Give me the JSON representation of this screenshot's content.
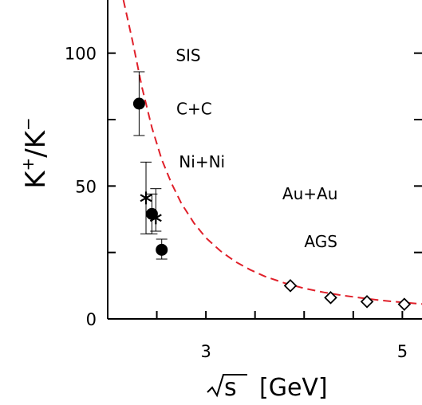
{
  "chart_data": {
    "type": "scatter",
    "xlabel": {
      "prefix": "√s",
      "unit": "[GeV]"
    },
    "ylabel": {
      "base": "K",
      "sup1": "+",
      "sep": "/",
      "base2": "K",
      "sup2": "−"
    },
    "xlim": [
      2.0,
      5.2
    ],
    "ylim": [
      0,
      120
    ],
    "x_ticks": [
      {
        "value": 2.5,
        "label": ""
      },
      {
        "value": 3.0,
        "label": "3"
      },
      {
        "value": 3.5,
        "label": ""
      },
      {
        "value": 4.0,
        "label": ""
      },
      {
        "value": 4.5,
        "label": ""
      },
      {
        "value": 5.0,
        "label": "5"
      }
    ],
    "y_ticks": [
      {
        "value": 0,
        "label": "0"
      },
      {
        "value": 25,
        "label": ""
      },
      {
        "value": 50,
        "label": "50"
      },
      {
        "value": 75,
        "label": ""
      },
      {
        "value": 100,
        "label": "100"
      }
    ],
    "annotations": [
      {
        "text": "SIS",
        "x": 2.82,
        "y": 97
      },
      {
        "text": "C+C",
        "x": 2.88,
        "y": 77
      },
      {
        "text": "Ni+Ni",
        "x": 2.96,
        "y": 57
      },
      {
        "text": "Au+Au",
        "x": 4.06,
        "y": 45
      },
      {
        "text": "AGS",
        "x": 4.17,
        "y": 27
      }
    ],
    "series": [
      {
        "marker": "filled-circle",
        "points": [
          {
            "x": 2.32,
            "y": 81,
            "yerr": [
              69,
              93
            ]
          },
          {
            "x": 2.45,
            "y": 39.5,
            "yerr": [
              32,
              47
            ]
          },
          {
            "x": 2.55,
            "y": 26,
            "yerr": [
              22.5,
              30
            ]
          }
        ]
      },
      {
        "marker": "star",
        "points": [
          {
            "x": 2.39,
            "y": 45.5,
            "yerr": [
              32,
              59
            ]
          },
          {
            "x": 2.49,
            "y": 38,
            "yerr": [
              33,
              49
            ]
          }
        ]
      },
      {
        "marker": "open-diamond",
        "points": [
          {
            "x": 3.86,
            "y": 12.5
          },
          {
            "x": 4.27,
            "y": 8
          },
          {
            "x": 4.64,
            "y": 6.5
          },
          {
            "x": 5.02,
            "y": 5.5
          }
        ]
      }
    ],
    "fit_curve": {
      "style": "dashed",
      "color": "#e0202a",
      "points": [
        {
          "x": 2.16,
          "y": 120
        },
        {
          "x": 2.25,
          "y": 105
        },
        {
          "x": 2.35,
          "y": 87
        },
        {
          "x": 2.45,
          "y": 72
        },
        {
          "x": 2.55,
          "y": 60
        },
        {
          "x": 2.65,
          "y": 51
        },
        {
          "x": 2.75,
          "y": 43.5
        },
        {
          "x": 2.88,
          "y": 36
        },
        {
          "x": 3.0,
          "y": 30.5
        },
        {
          "x": 3.15,
          "y": 25.5
        },
        {
          "x": 3.3,
          "y": 21.5
        },
        {
          "x": 3.45,
          "y": 18.5
        },
        {
          "x": 3.6,
          "y": 16
        },
        {
          "x": 3.8,
          "y": 13.5
        },
        {
          "x": 4.0,
          "y": 11.5
        },
        {
          "x": 4.2,
          "y": 10
        },
        {
          "x": 4.4,
          "y": 8.8
        },
        {
          "x": 4.6,
          "y": 7.8
        },
        {
          "x": 4.8,
          "y": 6.9
        },
        {
          "x": 5.0,
          "y": 6.2
        },
        {
          "x": 5.2,
          "y": 5.6
        }
      ]
    }
  }
}
